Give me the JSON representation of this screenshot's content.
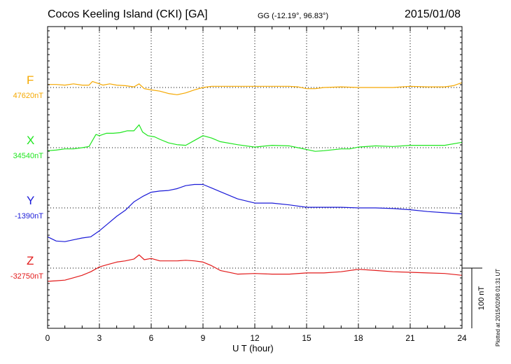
{
  "title": {
    "station": "Cocos Keeling Island (CKI)  [GA]",
    "coords": "GG (-12.19°,  96.83°)",
    "date": "2015/01/08",
    "plotted": "Plotted at 2015/02/08 01:31  UT"
  },
  "chart_data": {
    "type": "line",
    "title": "Cocos Keeling Island (CKI)  [GA]",
    "xlabel": "U T (hour)",
    "xlim": [
      0,
      24
    ],
    "xticks": [
      "0",
      "3",
      "6",
      "9",
      "12",
      "15",
      "18",
      "21",
      "24"
    ],
    "grid": true,
    "scale_bar": {
      "label": "100 nT",
      "nT": 100
    },
    "y_unit": "nT",
    "series": [
      {
        "name": "F",
        "baseline_label": "47620nT",
        "baseline": 47620,
        "color": "#f5a800",
        "x": [
          0,
          0.5,
          1,
          1.5,
          2,
          2.4,
          2.6,
          2.8,
          3.2,
          3.6,
          4.0,
          4.5,
          5.0,
          5.3,
          5.6,
          6.0,
          6.5,
          7.0,
          7.5,
          8.0,
          8.5,
          9.0,
          9.5,
          10,
          11,
          12,
          13,
          14,
          14.5,
          15,
          15.5,
          16,
          17,
          18,
          19,
          20,
          21,
          22,
          23,
          23.5,
          24
        ],
        "values": [
          47625,
          47625,
          47624,
          47626,
          47624,
          47624,
          47630,
          47628,
          47624,
          47626,
          47624,
          47623,
          47621,
          47626,
          47618,
          47616,
          47614,
          47610,
          47608,
          47611,
          47616,
          47620,
          47622,
          47622,
          47622,
          47622,
          47622,
          47622,
          47621,
          47618,
          47618,
          47620,
          47621,
          47620,
          47620,
          47620,
          47622,
          47621,
          47621,
          47623,
          47628
        ]
      },
      {
        "name": "X",
        "baseline_label": "34540nT",
        "baseline": 34540,
        "color": "#1ee61e",
        "x": [
          0,
          0.5,
          1,
          1.5,
          2,
          2.4,
          2.6,
          2.8,
          3.0,
          3.4,
          3.8,
          4.2,
          4.6,
          5.0,
          5.3,
          5.5,
          5.8,
          6.2,
          6.5,
          7.0,
          7.5,
          8.0,
          8.5,
          9.0,
          9.5,
          10,
          11,
          12,
          13,
          14,
          14.5,
          15,
          15.5,
          16,
          17,
          17.5,
          18,
          19,
          20,
          21,
          22,
          23,
          24
        ],
        "values": [
          34535,
          34536,
          34538,
          34538,
          34540,
          34542,
          34552,
          34562,
          34560,
          34564,
          34564,
          34565,
          34568,
          34568,
          34578,
          34566,
          34560,
          34558,
          34554,
          34548,
          34545,
          34544,
          34552,
          34560,
          34556,
          34550,
          34545,
          34541,
          34544,
          34543,
          34540,
          34537,
          34534,
          34535,
          34538,
          34538,
          34541,
          34543,
          34542,
          34544,
          34544,
          34544,
          34549
        ]
      },
      {
        "name": "Y",
        "baseline_label": "-1390nT",
        "baseline": -1390,
        "color": "#1a1ad8",
        "x": [
          0,
          0.5,
          1,
          1.5,
          2,
          2.5,
          3.0,
          3.5,
          4.0,
          4.5,
          5.0,
          5.5,
          6.0,
          6.5,
          7.0,
          7.5,
          8.0,
          8.5,
          9.0,
          9.5,
          10,
          11,
          12,
          13,
          14,
          15,
          16,
          17,
          18,
          19,
          20,
          21,
          22,
          23,
          24
        ],
        "values": [
          -1438,
          -1445,
          -1446,
          -1443,
          -1440,
          -1438,
          -1428,
          -1416,
          -1404,
          -1394,
          -1380,
          -1371,
          -1364,
          -1362,
          -1361,
          -1358,
          -1353,
          -1351,
          -1351,
          -1357,
          -1363,
          -1375,
          -1382,
          -1382,
          -1385,
          -1389,
          -1389,
          -1389,
          -1390,
          -1390,
          -1391,
          -1393,
          -1396,
          -1398,
          -1400
        ]
      },
      {
        "name": "Z",
        "baseline_label": "-32750nT",
        "baseline": -32750,
        "color": "#e21a1a",
        "x": [
          0,
          0.5,
          1,
          1.5,
          2,
          2.5,
          3.0,
          3.5,
          4.0,
          4.5,
          5.0,
          5.3,
          5.6,
          6.0,
          6.5,
          7.0,
          7.5,
          8.0,
          8.5,
          9.0,
          9.5,
          10,
          11,
          12,
          13,
          14,
          15,
          16,
          17,
          18,
          19,
          20,
          21,
          22,
          23,
          24
        ],
        "values": [
          -32772,
          -32771,
          -32770,
          -32766,
          -32762,
          -32756,
          -32748,
          -32744,
          -32740,
          -32738,
          -32735,
          -32728,
          -32736,
          -32734,
          -32738,
          -32738,
          -32738,
          -32737,
          -32738,
          -32740,
          -32746,
          -32754,
          -32760,
          -32759,
          -32760,
          -32760,
          -32758,
          -32758,
          -32756,
          -32752,
          -32754,
          -32756,
          -32757,
          -32758,
          -32759,
          -32762
        ]
      }
    ]
  }
}
